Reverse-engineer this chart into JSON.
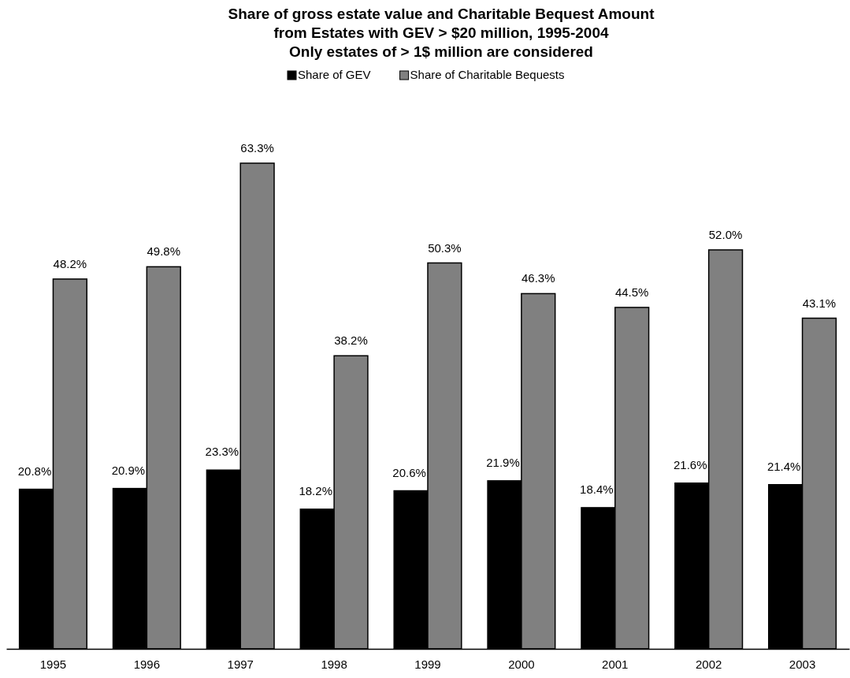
{
  "chart_data": {
    "type": "bar",
    "title": "Share of gross estate value and Charitable Bequest Amount\nfrom Estates with GEV > $20 million, 1995-2004\nOnly estates of > 1$ million are considered",
    "categories": [
      "1995",
      "1996",
      "1997",
      "1998",
      "1999",
      "2000",
      "2001",
      "2002",
      "2003"
    ],
    "series": [
      {
        "name": "Share of GEV",
        "color": "#000000",
        "values": [
          20.8,
          20.9,
          23.3,
          18.2,
          20.6,
          21.9,
          18.4,
          21.6,
          21.4
        ],
        "value_labels": [
          "20.8%",
          "20.9%",
          "23.3%",
          "18.2%",
          "20.6%",
          "21.9%",
          "18.4%",
          "21.6%",
          "21.4%"
        ]
      },
      {
        "name": "Share of Charitable Bequests",
        "color": "#808080",
        "values": [
          48.2,
          49.8,
          63.3,
          38.2,
          50.3,
          46.3,
          44.5,
          52.0,
          43.1
        ],
        "value_labels": [
          "48.2%",
          "49.8%",
          "63.3%",
          "38.2%",
          "50.3%",
          "46.3%",
          "44.5%",
          "52.0%",
          "43.1%"
        ]
      }
    ],
    "legend": "top"
  }
}
